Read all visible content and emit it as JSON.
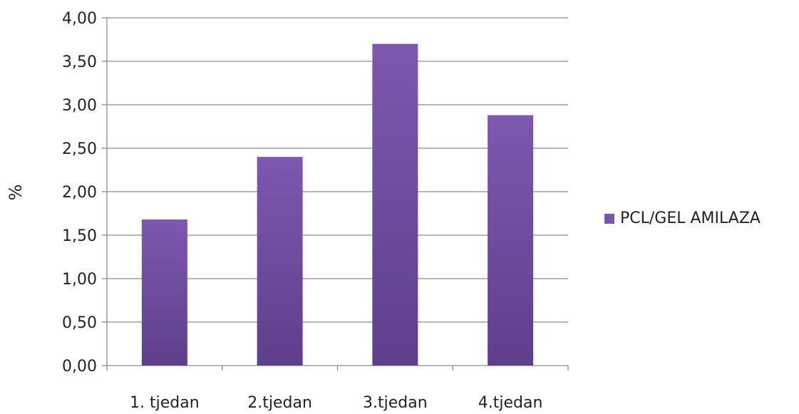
{
  "chart_data": {
    "type": "bar",
    "categories": [
      "1. tjedan",
      "2.tjedan",
      "3.tjedan",
      "4.tjedan"
    ],
    "series": [
      {
        "name": "PCL/GEL AMILAZA",
        "values": [
          1.68,
          2.4,
          3.7,
          2.88
        ],
        "color": "#7a56ab"
      }
    ],
    "ylabel": "%",
    "ylim": [
      0,
      4
    ],
    "yticks": [
      "0,00",
      "0,50",
      "1,00",
      "1,50",
      "2,00",
      "2,50",
      "3,00",
      "3,50",
      "4,00"
    ],
    "grid": true,
    "legend": "right"
  }
}
